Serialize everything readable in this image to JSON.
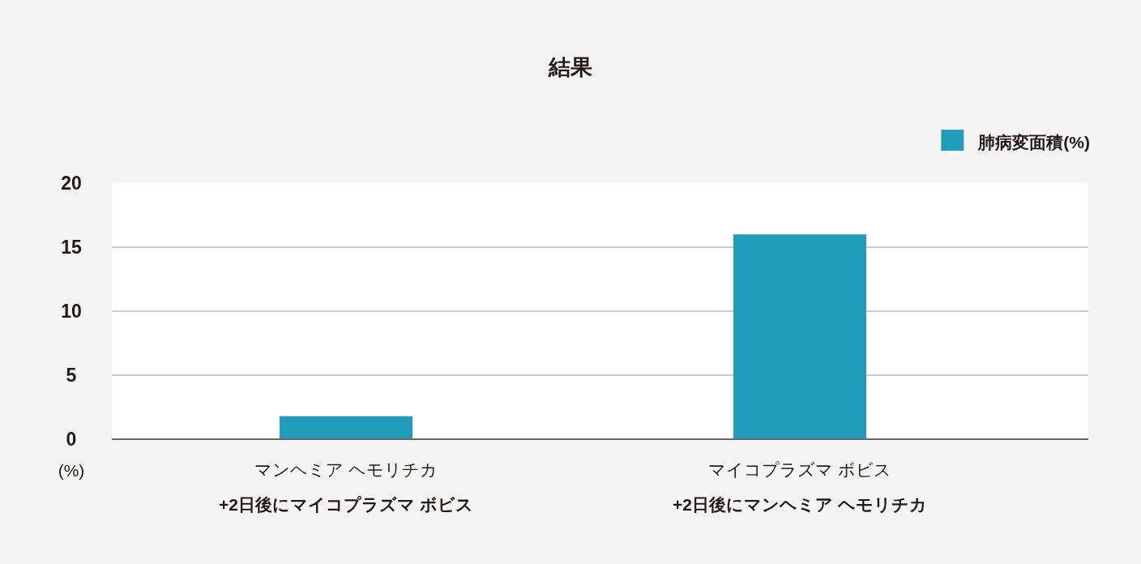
{
  "chart_data": {
    "type": "bar",
    "title": "結果",
    "ylabel": "(%)",
    "categories": [
      "マンヘミア ヘモリチカ\n+2日後にマイコプラズマ ボビス",
      "マイコプラズマ ボビス\n+2日後にマンヘミア ヘモリチカ"
    ],
    "series": [
      {
        "name": "肺病変面積(%)",
        "color": "#229cbb",
        "values": [
          1.8,
          16
        ]
      }
    ],
    "ylim": [
      0,
      20
    ],
    "yticks": [
      0,
      5,
      10,
      15,
      20
    ],
    "grid": "y",
    "legend": "top right"
  }
}
